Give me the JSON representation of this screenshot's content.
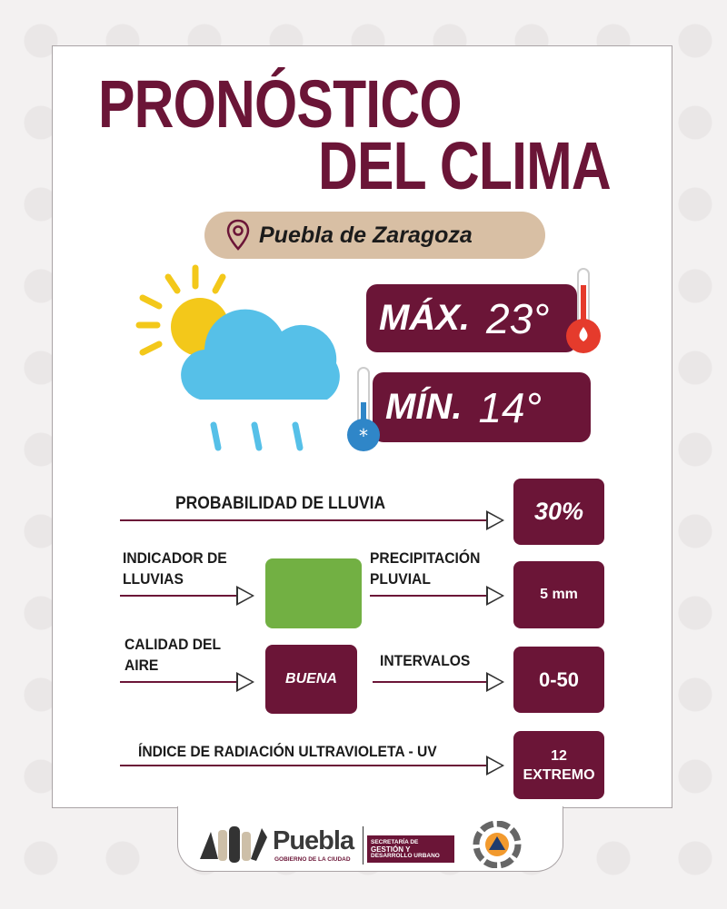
{
  "title": {
    "line1": "PRONÓSTICO",
    "line2": "DEL CLIMA"
  },
  "location": {
    "icon": "map-pin-icon",
    "name": "Puebla de Zaragoza"
  },
  "weather_icon": "sun-cloud-rain-icon",
  "max": {
    "label": "MÁX.",
    "value": "23°",
    "icon": "thermometer-hot-icon"
  },
  "min": {
    "label": "MÍN.",
    "value": "14°",
    "icon": "thermometer-cold-icon"
  },
  "rain_probability": {
    "label": "PROBABILIDAD DE LLUVIA",
    "value": "30%"
  },
  "rain_indicator": {
    "label_line1": "INDICADOR DE",
    "label_line2": "LLUVIAS",
    "color": "#72b043"
  },
  "precipitation": {
    "label_line1": "PRECIPITACIÓN",
    "label_line2": "PLUVIAL",
    "value": "5 mm"
  },
  "air_quality": {
    "label_line1": "CALIDAD DEL",
    "label_line2": "AIRE",
    "value": "BUENA"
  },
  "intervals": {
    "label": "INTERVALOS",
    "value": "0-50"
  },
  "uv": {
    "label": "ÍNDICE DE RADIACIÓN ULTRAVIOLETA - UV",
    "value": "12",
    "level": "EXTREMO"
  },
  "footer": {
    "brand": "Puebla",
    "brand_sub": "GOBIERNO DE LA CIUDAD",
    "dept_line1": "SECRETARÍA DE",
    "dept_line2": "GESTIÓN Y",
    "dept_line3": "DESARROLLO URBANO"
  },
  "colors": {
    "maroon": "#6b1537",
    "tan": "#d8bfa4",
    "sky": "#56c0e8",
    "sun": "#f3c81a"
  }
}
